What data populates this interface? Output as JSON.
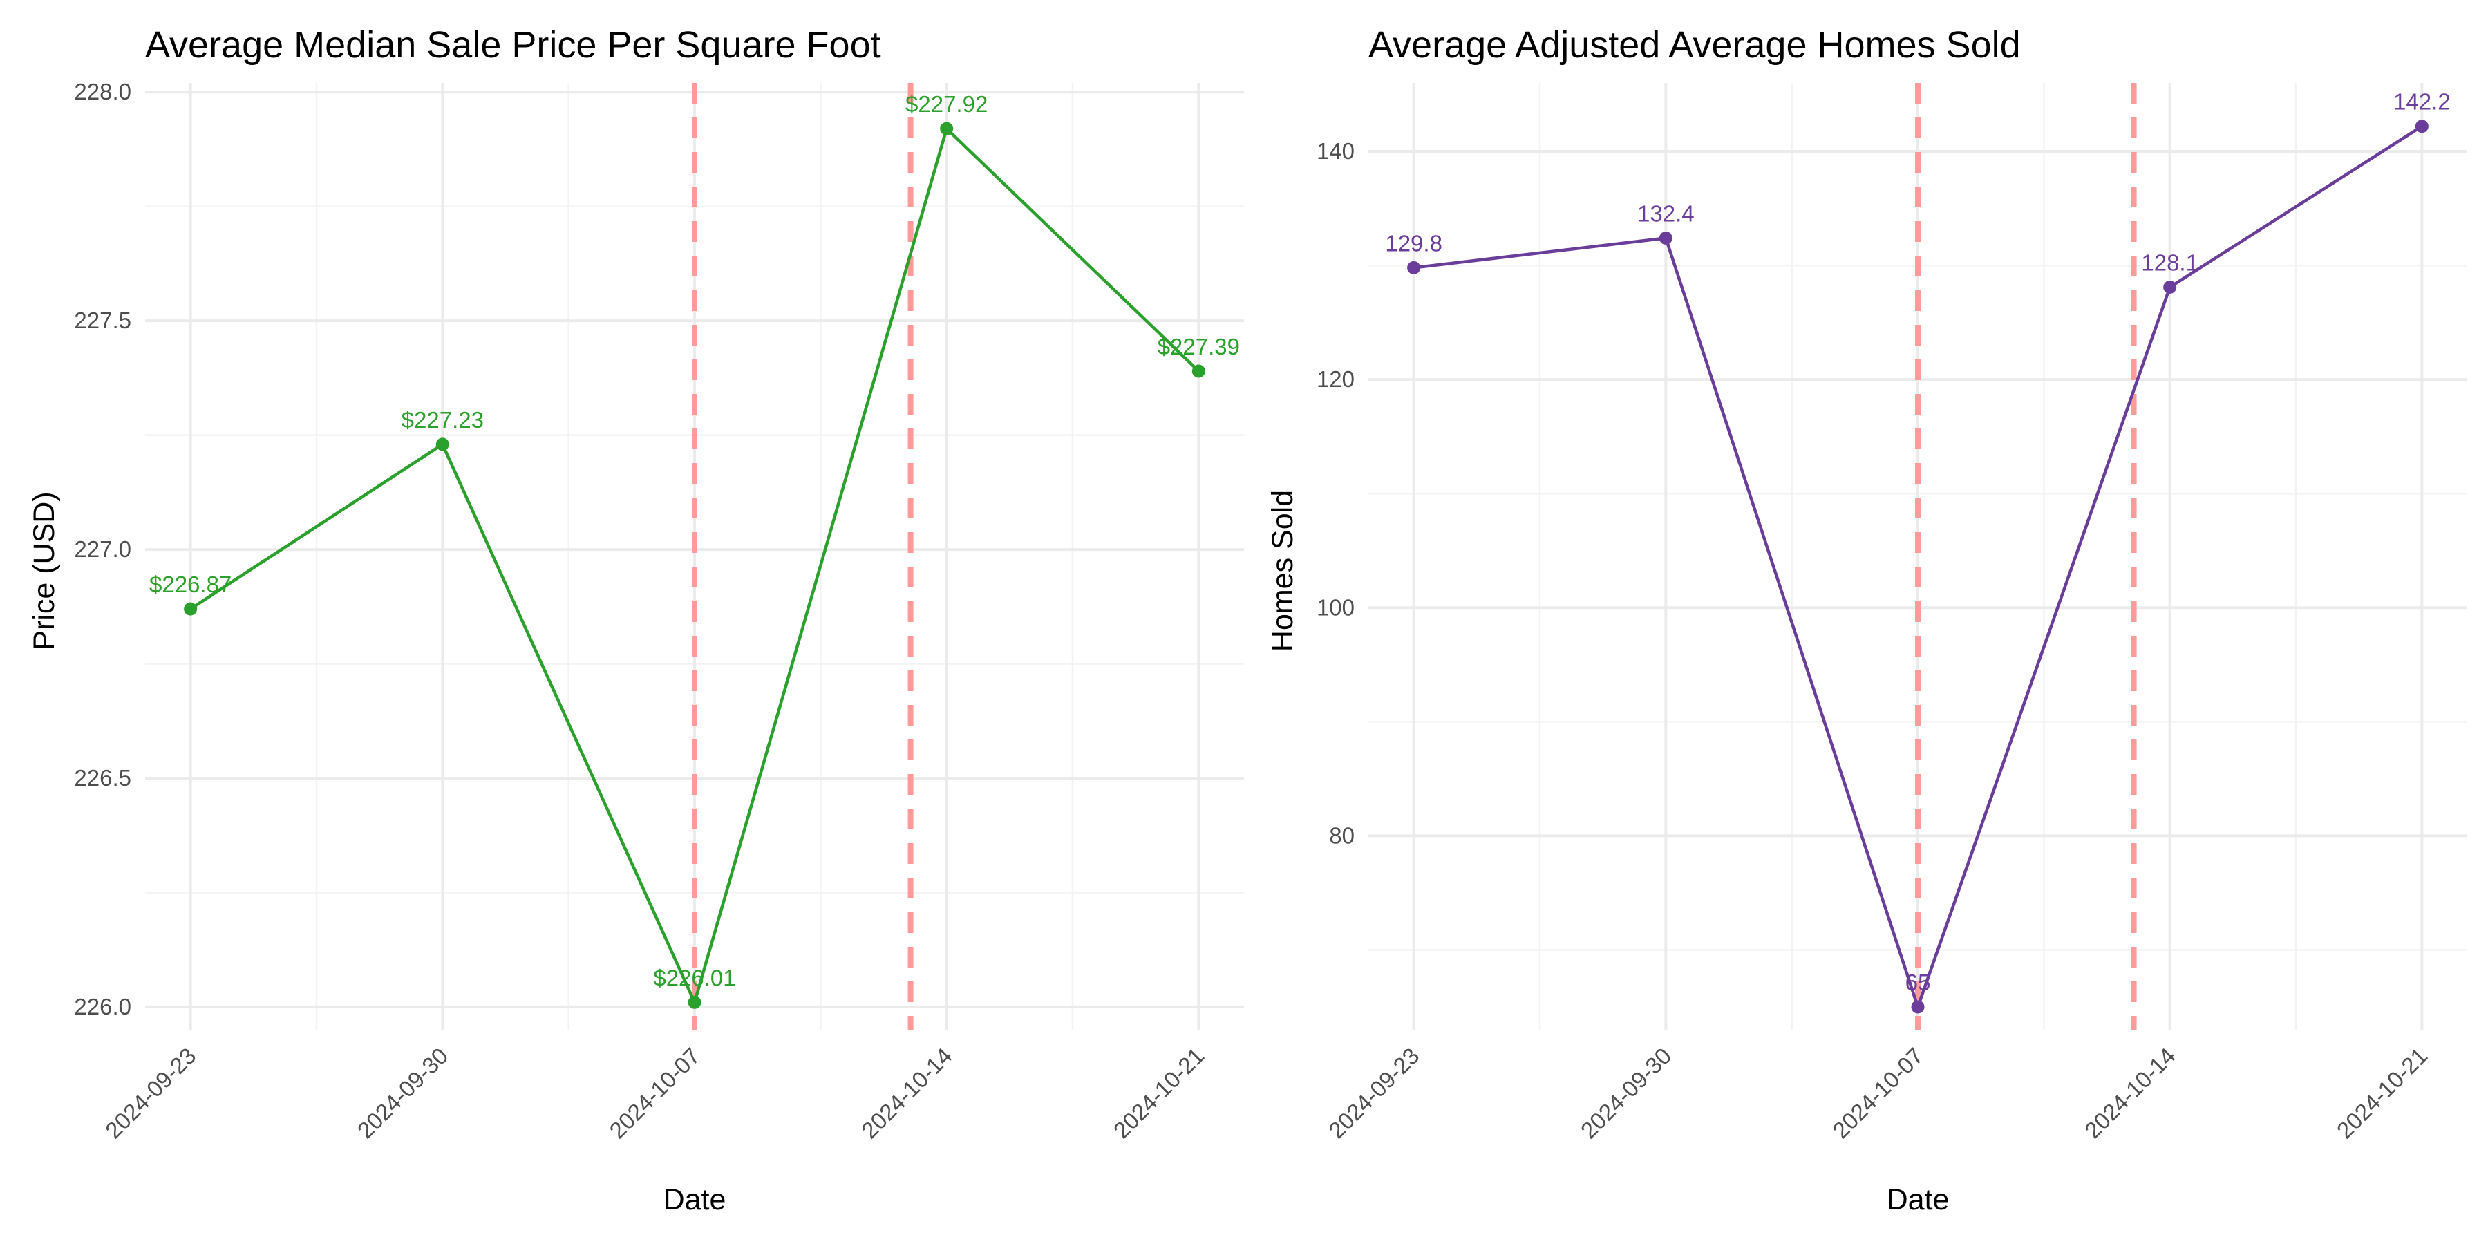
{
  "chart_data": [
    {
      "type": "line",
      "title": "Average Median Sale Price Per Square Foot",
      "xlabel": "Date",
      "ylabel": "Price (USD)",
      "x": [
        "2024-09-23",
        "2024-09-30",
        "2024-10-07",
        "2024-10-14",
        "2024-10-21"
      ],
      "series": [
        {
          "values": [
            226.87,
            227.23,
            226.01,
            227.92,
            227.39
          ],
          "labels": [
            "$226.87",
            "$227.23",
            "$226.01",
            "$227.92",
            "$227.39"
          ],
          "color": "#2ca02c"
        }
      ],
      "ylim": [
        225.95,
        228.02
      ],
      "yticks": [
        226.0,
        226.5,
        227.0,
        227.5,
        228.0
      ],
      "ytick_labels": [
        "226.0",
        "226.5",
        "227.0",
        "227.5",
        "228.0"
      ],
      "vlines": [
        "2024-10-07",
        "2024-10-13"
      ],
      "vline_color": "#ff9a9a",
      "grid": true
    },
    {
      "type": "line",
      "title": "Average Adjusted Average Homes Sold",
      "xlabel": "Date",
      "ylabel": "Homes Sold",
      "x": [
        "2024-09-23",
        "2024-09-30",
        "2024-10-07",
        "2024-10-14",
        "2024-10-21"
      ],
      "series": [
        {
          "values": [
            129.8,
            132.4,
            65,
            128.1,
            142.2
          ],
          "labels": [
            "129.8",
            "132.4",
            "65",
            "128.1",
            "142.2"
          ],
          "color": "#6a3d9a"
        }
      ],
      "ylim": [
        63,
        146
      ],
      "yticks": [
        80,
        100,
        120,
        140
      ],
      "ytick_labels": [
        "80",
        "100",
        "120",
        "140"
      ],
      "vlines": [
        "2024-10-07",
        "2024-10-13"
      ],
      "vline_color": "#ff9a9a",
      "grid": true
    }
  ]
}
